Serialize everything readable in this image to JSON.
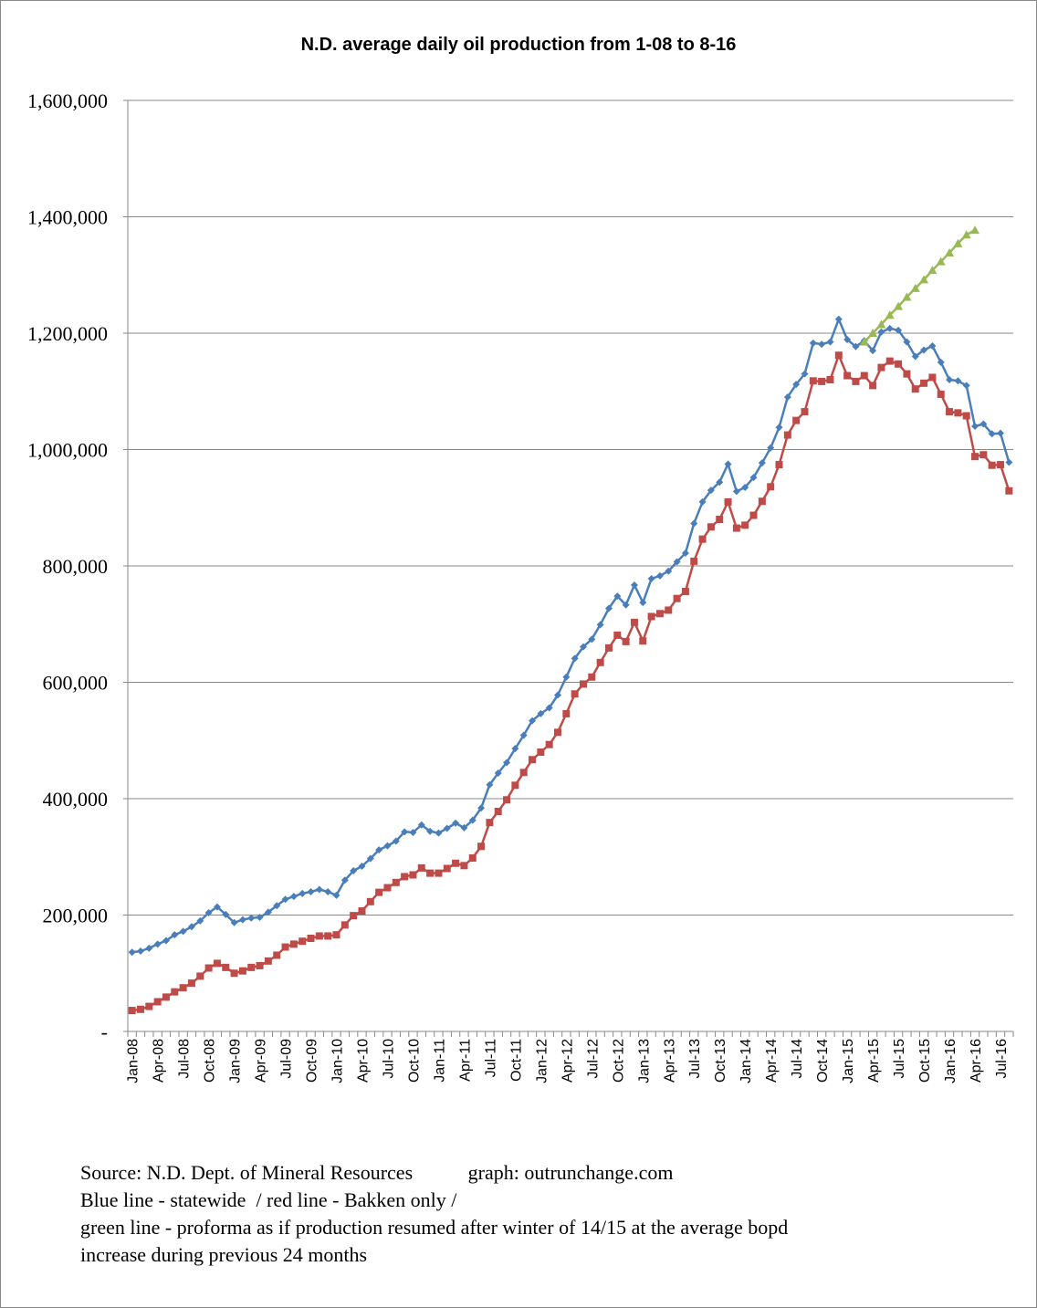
{
  "chart_data": {
    "type": "line",
    "title": "N.D. average daily oil production from 1-08 to 8-16",
    "xlabel": "",
    "ylabel": "",
    "ylim": [
      0,
      1600000
    ],
    "yticks": [
      {
        "value": 0,
        "label": "-"
      },
      {
        "value": 200000,
        "label": "200,000"
      },
      {
        "value": 400000,
        "label": "400,000"
      },
      {
        "value": 600000,
        "label": "600,000"
      },
      {
        "value": 800000,
        "label": "800,000"
      },
      {
        "value": 1000000,
        "label": "1,000,000"
      },
      {
        "value": 1200000,
        "label": "1,200,000"
      },
      {
        "value": 1400000,
        "label": "1,400,000"
      },
      {
        "value": 1600000,
        "label": "1,600,000"
      }
    ],
    "grid": "horizontal",
    "x_tick_labels": [
      "Jan-08",
      "Apr-08",
      "Jul-08",
      "Oct-08",
      "Jan-09",
      "Apr-09",
      "Jul-09",
      "Oct-09",
      "Jan-10",
      "Apr-10",
      "Jul-10",
      "Oct-10",
      "Jan-11",
      "Apr-11",
      "Jul-11",
      "Oct-11",
      "Jan-12",
      "Apr-12",
      "Jul-12",
      "Oct-12",
      "Jan-13",
      "Apr-13",
      "Jul-13",
      "Oct-13",
      "Jan-14",
      "Apr-14",
      "Jul-14",
      "Oct-14",
      "Jan-15",
      "Apr-15",
      "Jul-15",
      "Oct-15",
      "Jan-16",
      "Apr-16",
      "Jul-16"
    ],
    "x_tick_month_index": [
      0,
      3,
      6,
      9,
      12,
      15,
      18,
      21,
      24,
      27,
      30,
      33,
      36,
      39,
      42,
      45,
      48,
      51,
      54,
      57,
      60,
      63,
      66,
      69,
      72,
      75,
      78,
      81,
      84,
      87,
      90,
      93,
      96,
      99,
      102
    ],
    "series": [
      {
        "color": "#4a7ebb",
        "marker": "diamond",
        "start_month_index": 0,
        "values": [
          136000,
          138000,
          143000,
          150000,
          156000,
          166000,
          172000,
          180000,
          190000,
          204000,
          214000,
          201000,
          187000,
          192000,
          195000,
          196000,
          205000,
          216000,
          227000,
          232000,
          237000,
          240000,
          244000,
          240000,
          234000,
          260000,
          276000,
          284000,
          297000,
          312000,
          319000,
          327000,
          343000,
          342000,
          355000,
          344000,
          341000,
          349000,
          358000,
          350000,
          363000,
          384000,
          424000,
          444000,
          462000,
          486000,
          509000,
          534000,
          546000,
          556000,
          578000,
          609000,
          641000,
          661000,
          674000,
          699000,
          727000,
          748000,
          733000,
          767000,
          737000,
          778000,
          783000,
          791000,
          807000,
          822000,
          873000,
          910000,
          930000,
          944000,
          975000,
          928000,
          935000,
          952000,
          977000,
          1003000,
          1038000,
          1090000,
          1112000,
          1130000,
          1183000,
          1181000,
          1185000,
          1224000,
          1189000,
          1177000,
          1187000,
          1170000,
          1202000,
          1208000,
          1205000,
          1185000,
          1160000,
          1171000,
          1178000,
          1150000,
          1120000,
          1118000,
          1110000,
          1040000,
          1044000,
          1027000,
          1028000,
          978000
        ]
      },
      {
        "color": "#be4b48",
        "marker": "square",
        "start_month_index": 0,
        "values": [
          36000,
          38000,
          43000,
          51000,
          59000,
          68000,
          75000,
          83000,
          95000,
          109000,
          117000,
          110000,
          100000,
          104000,
          110000,
          113000,
          121000,
          131000,
          145000,
          150000,
          155000,
          160000,
          164000,
          164000,
          166000,
          183000,
          199000,
          207000,
          223000,
          239000,
          247000,
          256000,
          266000,
          269000,
          281000,
          272000,
          272000,
          280000,
          289000,
          285000,
          298000,
          318000,
          359000,
          378000,
          398000,
          423000,
          445000,
          467000,
          480000,
          493000,
          514000,
          546000,
          580000,
          597000,
          609000,
          634000,
          659000,
          681000,
          670000,
          703000,
          671000,
          713000,
          718000,
          724000,
          744000,
          756000,
          808000,
          846000,
          867000,
          880000,
          910000,
          865000,
          870000,
          887000,
          911000,
          936000,
          974000,
          1025000,
          1050000,
          1065000,
          1118000,
          1117000,
          1120000,
          1162000,
          1127000,
          1117000,
          1127000,
          1110000,
          1141000,
          1152000,
          1147000,
          1130000,
          1104000,
          1114000,
          1124000,
          1095000,
          1065000,
          1063000,
          1058000,
          988000,
          991000,
          973000,
          974000,
          929000
        ]
      },
      {
        "color": "#98b954",
        "marker": "triangle",
        "start_month_index": 86,
        "values": [
          1185000,
          1200000,
          1215000,
          1231000,
          1246000,
          1262000,
          1277000,
          1292000,
          1308000,
          1323000,
          1338000,
          1354000,
          1369000,
          1377000
        ]
      }
    ]
  },
  "notes": {
    "line1": "Source: N.D. Dept. of Mineral Resources           graph: outrunchange.com",
    "line2": "Blue line - statewide  / red line - Bakken only /",
    "line3": "green line - proforma as if production resumed after winter of 14/15 at the average bopd",
    "line4": "increase during previous 24 months"
  }
}
